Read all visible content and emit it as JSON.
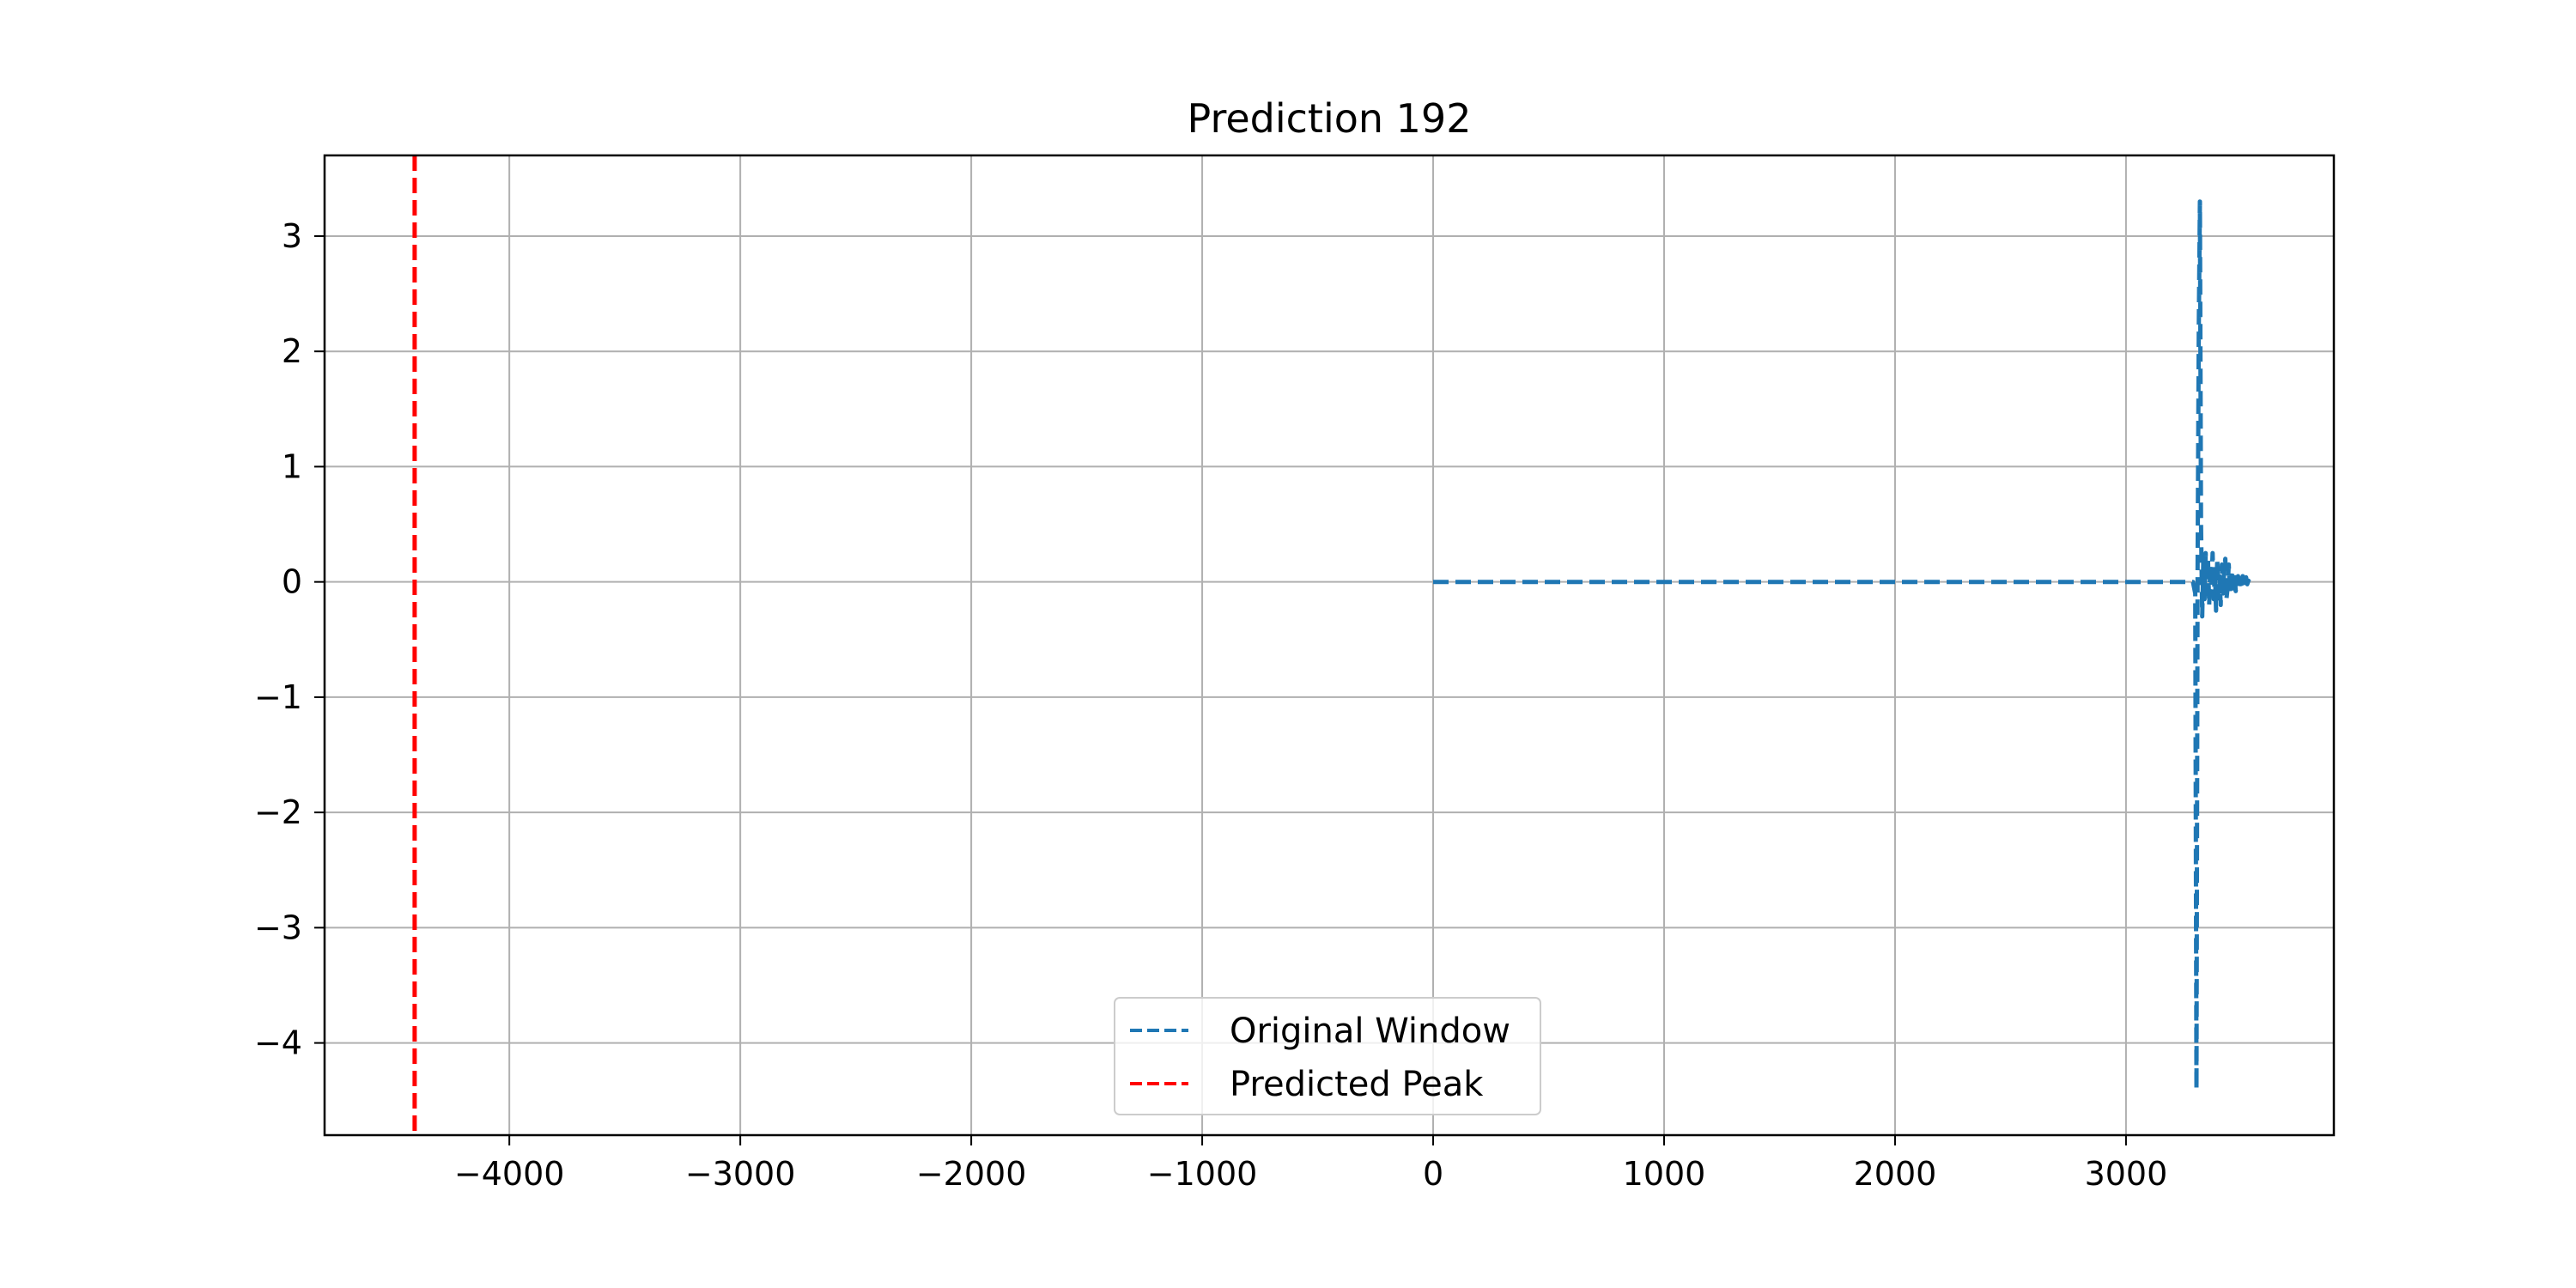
{
  "chart_data": {
    "type": "line",
    "title": "Prediction 192",
    "xlabel": "",
    "ylabel": "",
    "xlim": [
      -4800,
      3900
    ],
    "ylim": [
      -4.8,
      3.7
    ],
    "xticks": [
      -4000,
      -3000,
      -2000,
      -1000,
      0,
      1000,
      2000,
      3000
    ],
    "xtick_labels": [
      "−4000",
      "−3000",
      "−2000",
      "−1000",
      "0",
      "1000",
      "2000",
      "3000"
    ],
    "yticks": [
      3,
      2,
      1,
      0,
      -1,
      -2,
      -3,
      -4
    ],
    "ytick_labels": [
      "3",
      "2",
      "1",
      "0",
      "−1",
      "−2",
      "−3",
      "−4"
    ],
    "grid": true,
    "legend_position": "lower center",
    "series": [
      {
        "name": "Original Window",
        "color": "#1f77b4",
        "style": "dashed",
        "x": [
          0,
          3290,
          3300,
          3305,
          3310,
          3315,
          3320,
          3325,
          3330,
          3335,
          3340,
          3345,
          3350,
          3355,
          3360,
          3365,
          3370,
          3375,
          3380,
          3385,
          3390,
          3395,
          3400,
          3405,
          3410,
          3415,
          3420,
          3425,
          3430,
          3435,
          3440,
          3445,
          3450,
          3455,
          3460,
          3465,
          3470,
          3475,
          3480,
          3485,
          3490,
          3495,
          3500,
          3505,
          3510,
          3515,
          3520,
          3525,
          3530,
          3535
        ],
        "y": [
          0,
          0,
          -0.1,
          -4.4,
          0.1,
          2.2,
          3.3,
          0.5,
          -0.3,
          0.2,
          -0.15,
          0.25,
          -0.1,
          0.2,
          -0.2,
          0.15,
          -0.05,
          0.25,
          -0.15,
          0.1,
          -0.25,
          0.2,
          -0.1,
          0.05,
          -0.2,
          0.15,
          -0.1,
          0.1,
          0.2,
          -0.15,
          -0.05,
          0.15,
          -0.1,
          0.1,
          0.05,
          -0.1,
          0.08,
          -0.08,
          0.02,
          0.05,
          -0.06,
          0.03,
          -0.05,
          0.05,
          -0.03,
          0.02,
          0.04,
          -0.02,
          0.01,
          0.0
        ]
      },
      {
        "name": "Predicted Peak",
        "color": "#ff0000",
        "style": "dashed",
        "type": "vline",
        "x": -4410
      }
    ]
  }
}
